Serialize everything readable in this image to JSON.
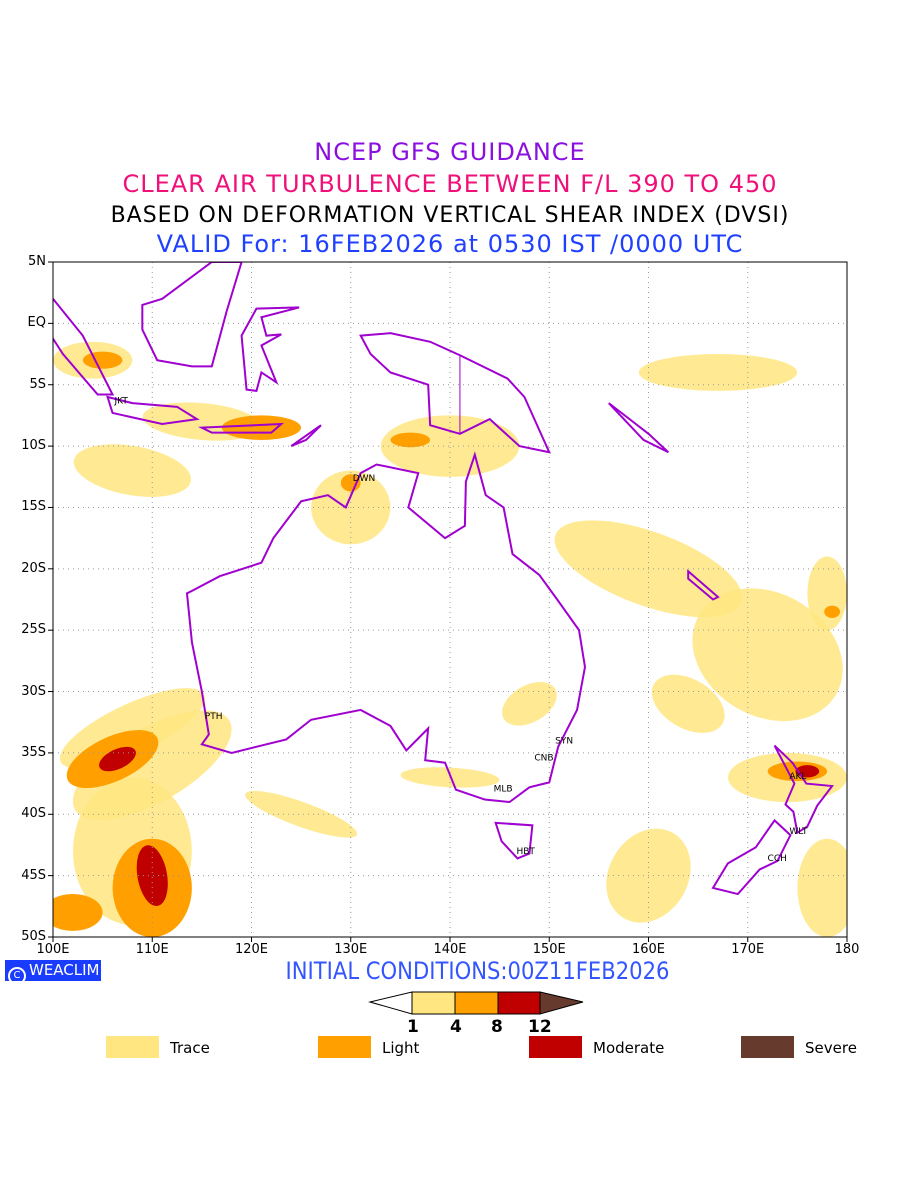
{
  "titles": {
    "line1": "NCEP GFS GUIDANCE",
    "line2": "CLEAR AIR TURBULENCE BETWEEN F/L 390 TO 450",
    "line3": "BASED ON DEFORMATION VERTICAL SHEAR INDEX (DVSI)",
    "line4": "VALID For: 16FEB2026 at 0530 IST /0000 UTC"
  },
  "colors": {
    "line1": "#8b10e0",
    "line2": "#f0107a",
    "line3": "#000000",
    "line4": "#2040ff",
    "coast": "#a000d0",
    "trace": "#ffe680",
    "light": "#ffa000",
    "moderate": "#c00000",
    "severe": "#673a2e"
  },
  "axes": {
    "lon_labels": [
      "100E",
      "110E",
      "120E",
      "130E",
      "140E",
      "150E",
      "160E",
      "170E",
      "180"
    ],
    "lat_labels": [
      "5N",
      "EQ",
      "5S",
      "10S",
      "15S",
      "20S",
      "25S",
      "30S",
      "35S",
      "40S",
      "45S",
      "50S"
    ],
    "lon_range": [
      100,
      180
    ],
    "lat_range": [
      5,
      -50
    ]
  },
  "cities": [
    {
      "code": "JKT",
      "lon": 106.8,
      "lat": -6.2
    },
    {
      "code": "DWN",
      "lon": 130.8,
      "lat": -12.5
    },
    {
      "code": "PTH",
      "lon": 115.9,
      "lat": -31.9
    },
    {
      "code": "SYN",
      "lon": 151.2,
      "lat": -33.9
    },
    {
      "code": "CNB",
      "lon": 149.1,
      "lat": -35.3
    },
    {
      "code": "MLB",
      "lon": 145,
      "lat": -37.8
    },
    {
      "code": "HBT",
      "lon": 147.3,
      "lat": -42.9
    },
    {
      "code": "AKL",
      "lon": 174.8,
      "lat": -36.8
    },
    {
      "code": "WLT",
      "lon": 174.8,
      "lat": -41.3
    },
    {
      "code": "CCH",
      "lon": 172.6,
      "lat": -43.5
    }
  ],
  "footer": {
    "logo": "WEACLIM",
    "initial": "INITIAL CONDITIONS:00Z11FEB2026"
  },
  "colorbar": {
    "ticks": [
      "1",
      "4",
      "8",
      "12"
    ]
  },
  "legend": [
    {
      "label": "Trace",
      "color": "#ffe680"
    },
    {
      "label": "Light",
      "color": "#ffa000"
    },
    {
      "label": "Moderate",
      "color": "#c00000"
    },
    {
      "label": "Severe",
      "color": "#673a2e"
    }
  ]
}
